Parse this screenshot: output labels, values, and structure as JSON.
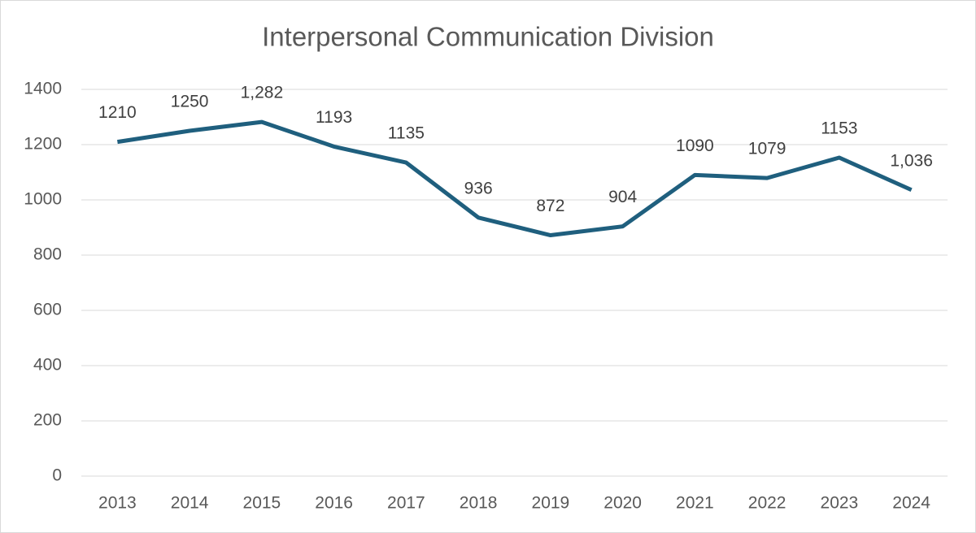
{
  "chart_data": {
    "type": "line",
    "title": "Interpersonal Communication Division",
    "categories": [
      "2013",
      "2014",
      "2015",
      "2016",
      "2017",
      "2018",
      "2019",
      "2020",
      "2021",
      "2022",
      "2023",
      "2024"
    ],
    "series": [
      {
        "color": "#1f5f7e",
        "values": [
          1210,
          1250,
          1282,
          1193,
          1135,
          936,
          872,
          904,
          1090,
          1079,
          1153,
          1036
        ],
        "value_labels": [
          "1210",
          "1250",
          "1,282",
          "1193",
          "1135",
          "936",
          "872",
          "904",
          "1090",
          "1079",
          "1153",
          "1,036"
        ]
      }
    ],
    "ylim": [
      0,
      1400
    ],
    "yticks": [
      0,
      200,
      400,
      600,
      800,
      1000,
      1200,
      1400
    ],
    "grid": true
  }
}
